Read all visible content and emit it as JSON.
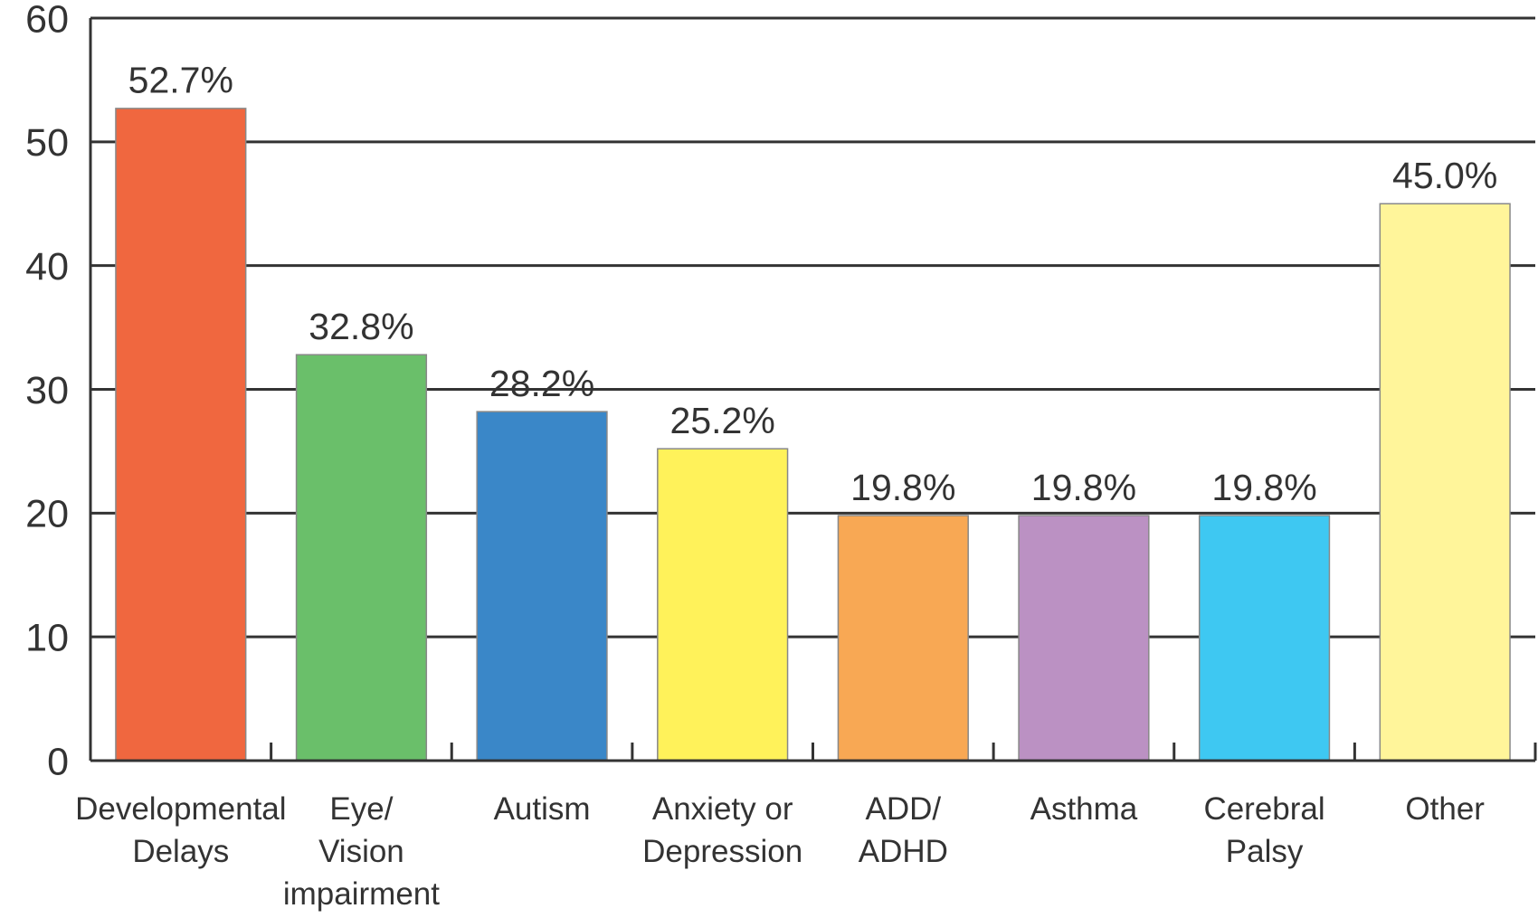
{
  "chart_data": {
    "type": "bar",
    "categories": [
      "Developmental\nDelays",
      "Eye/\nVision\nimpairment",
      "Autism",
      "Anxiety or\nDepression",
      "ADD/\nADHD",
      "Asthma",
      "Cerebral\nPalsy",
      "Other"
    ],
    "values": [
      52.7,
      32.8,
      28.2,
      25.2,
      19.8,
      19.8,
      19.8,
      45.0
    ],
    "value_labels": [
      "52.7%",
      "32.8%",
      "28.2%",
      "25.2%",
      "19.8%",
      "19.8%",
      "19.8%",
      "45.0%"
    ],
    "colors": [
      "#f0673f",
      "#6abf6a",
      "#3a87c8",
      "#fff25a",
      "#f8a854",
      "#bb91c3",
      "#3ec8f2",
      "#fff59a"
    ],
    "ylim": [
      0,
      60
    ],
    "yticks": [
      0,
      10,
      20,
      30,
      40,
      50,
      60
    ],
    "grid": true
  }
}
